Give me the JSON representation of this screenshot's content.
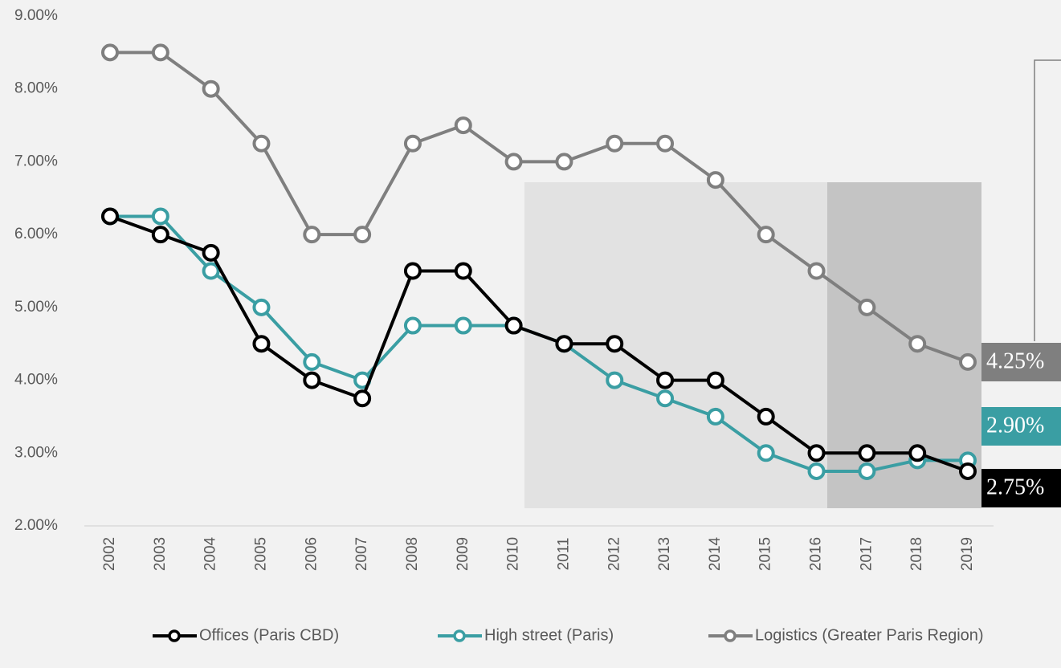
{
  "chart_data": {
    "type": "line",
    "categories": [
      "2002",
      "2003",
      "2004",
      "2005",
      "2006",
      "2007",
      "2008",
      "2009",
      "2010",
      "2011",
      "2012",
      "2013",
      "2014",
      "2015",
      "2016",
      "2017",
      "2018",
      "2019"
    ],
    "series": [
      {
        "name": "Offices (Paris CBD)",
        "color": "#000000",
        "values": [
          6.25,
          6.0,
          5.75,
          4.5,
          4.0,
          3.75,
          5.5,
          5.5,
          4.75,
          4.5,
          4.5,
          4.0,
          4.0,
          3.5,
          3.0,
          3.0,
          3.0,
          2.75
        ],
        "value_labels": [
          null,
          null,
          null,
          null,
          null,
          null,
          null,
          null,
          null,
          null,
          null,
          null,
          null,
          null,
          null,
          null,
          null,
          "2.75%"
        ]
      },
      {
        "name": "High street (Paris)",
        "color": "#3a9ea3",
        "values": [
          6.25,
          6.25,
          5.5,
          5.0,
          4.25,
          4.0,
          4.75,
          4.75,
          4.75,
          4.5,
          4.0,
          3.75,
          3.5,
          3.0,
          2.75,
          2.75,
          2.9,
          2.9
        ],
        "value_labels": [
          null,
          null,
          null,
          null,
          null,
          null,
          null,
          null,
          null,
          null,
          null,
          null,
          null,
          null,
          null,
          null,
          null,
          "2.90%"
        ]
      },
      {
        "name": "Logistics (Greater Paris Region)",
        "color": "#7f7f7f",
        "values": [
          8.5,
          8.5,
          8.0,
          7.25,
          6.0,
          6.0,
          7.25,
          7.5,
          7.0,
          7.0,
          7.25,
          7.25,
          6.75,
          6.0,
          5.5,
          5.0,
          4.5,
          4.25
        ],
        "value_labels": [
          null,
          null,
          null,
          null,
          null,
          null,
          null,
          null,
          null,
          null,
          null,
          null,
          null,
          null,
          null,
          null,
          null,
          "4.25%"
        ]
      }
    ],
    "ylim": [
      2,
      9
    ],
    "yticks": [
      {
        "value": 2,
        "label": "2.00%"
      },
      {
        "value": 3,
        "label": "3.00%"
      },
      {
        "value": 4,
        "label": "4.00%"
      },
      {
        "value": 5,
        "label": "5.00%"
      },
      {
        "value": 6,
        "label": "6.00%"
      },
      {
        "value": 7,
        "label": "7.00%"
      },
      {
        "value": 8,
        "label": "8.00%"
      },
      {
        "value": 9,
        "label": "9.00%"
      }
    ],
    "legend": "bottom"
  }
}
